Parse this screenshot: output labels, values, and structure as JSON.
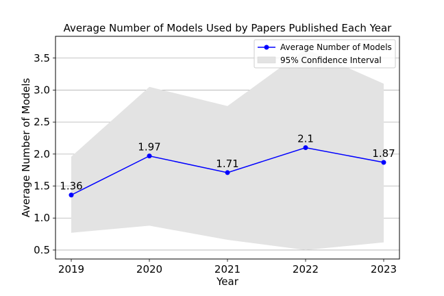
{
  "chart_data": {
    "type": "line",
    "title": "Average Number of Models Used by Papers Published Each Year",
    "xlabel": "Year",
    "ylabel": "Average Number of Models",
    "categories": [
      "2019",
      "2020",
      "2021",
      "2022",
      "2023"
    ],
    "yticks": [
      "0.5",
      "1.0",
      "1.5",
      "2.0",
      "2.5",
      "3.0",
      "3.5"
    ],
    "ylim": [
      0.36,
      3.84
    ],
    "grid": "y",
    "legend_position": "top-right",
    "series": [
      {
        "name": "Average Number of Models",
        "kind": "line",
        "color": "#0000ff",
        "values": [
          1.36,
          1.97,
          1.71,
          2.1,
          1.87
        ],
        "labels": [
          "1.36",
          "1.97",
          "1.71",
          "2.1",
          "1.87"
        ]
      },
      {
        "name": "95% Confidence Interval",
        "kind": "band",
        "color": "#e3e3e3",
        "lower": [
          0.77,
          0.88,
          0.66,
          0.5,
          0.62
        ],
        "upper": [
          1.96,
          3.05,
          2.75,
          3.64,
          3.1
        ]
      }
    ]
  }
}
